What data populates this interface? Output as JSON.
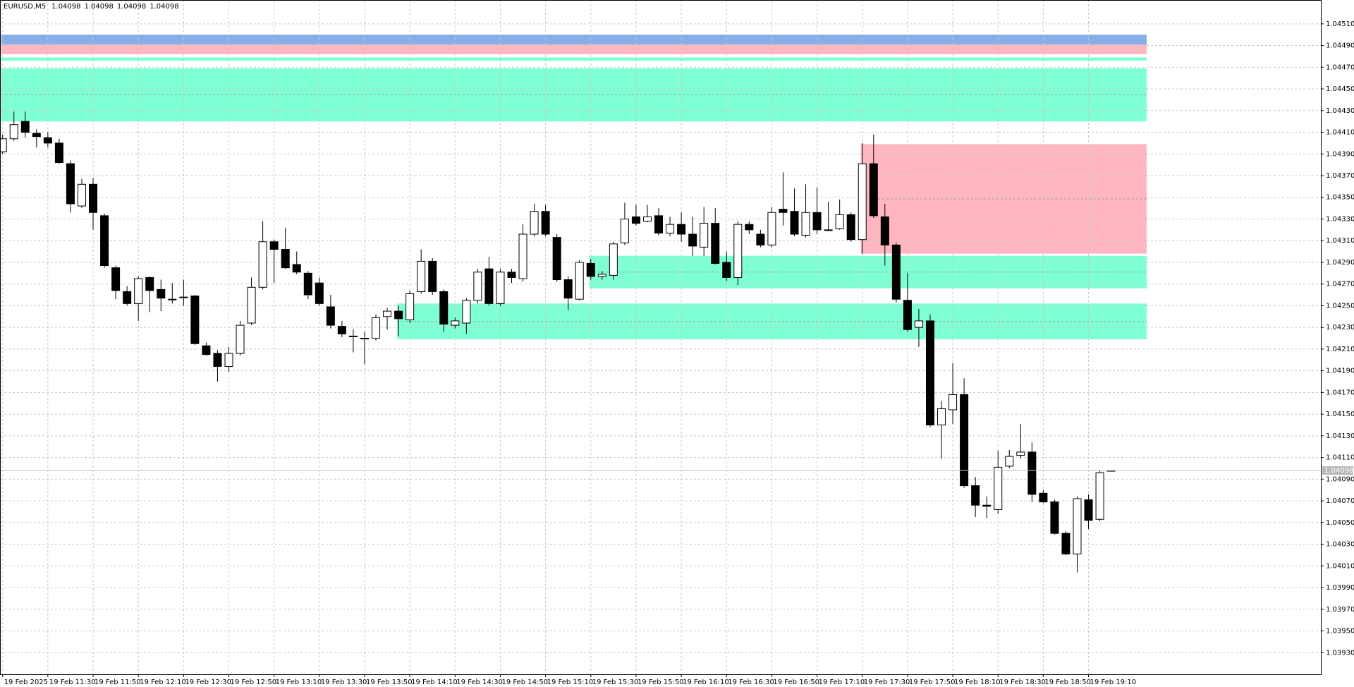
{
  "chart_data": {
    "type": "candlestick",
    "symbol": "EURUSD,M5",
    "header_ohlc": [
      1.04098,
      1.04098,
      1.04098,
      1.04098
    ],
    "last_price": 1.04098,
    "bull_color": "#ffffff",
    "bear_color": "#000000",
    "grid": true,
    "ylim": [
      1.0391,
      1.04532
    ],
    "yticks": [
      {
        "value": 1.0393,
        "label": "1.03930"
      },
      {
        "value": 1.0395,
        "label": "1.03950"
      },
      {
        "value": 1.0397,
        "label": "1.03970"
      },
      {
        "value": 1.0399,
        "label": "1.03990"
      },
      {
        "value": 1.0401,
        "label": "1.04010"
      },
      {
        "value": 1.0403,
        "label": "1.04030"
      },
      {
        "value": 1.0405,
        "label": "1.04050"
      },
      {
        "value": 1.0407,
        "label": "1.04070"
      },
      {
        "value": 1.0409,
        "label": "1.04090"
      },
      {
        "value": 1.0411,
        "label": "1.04110"
      },
      {
        "value": 1.0413,
        "label": "1.04130"
      },
      {
        "value": 1.0415,
        "label": "1.04150"
      },
      {
        "value": 1.0417,
        "label": "1.04170"
      },
      {
        "value": 1.0419,
        "label": "1.04190"
      },
      {
        "value": 1.0421,
        "label": "1.04210"
      },
      {
        "value": 1.0423,
        "label": "1.04230"
      },
      {
        "value": 1.0425,
        "label": "1.04250"
      },
      {
        "value": 1.0427,
        "label": "1.04270"
      },
      {
        "value": 1.0429,
        "label": "1.04290"
      },
      {
        "value": 1.0431,
        "label": "1.04310"
      },
      {
        "value": 1.0433,
        "label": "1.04330"
      },
      {
        "value": 1.0435,
        "label": "1.04350"
      },
      {
        "value": 1.0437,
        "label": "1.04370"
      },
      {
        "value": 1.0439,
        "label": "1.04390"
      },
      {
        "value": 1.0441,
        "label": "1.04410"
      },
      {
        "value": 1.0443,
        "label": "1.04430"
      },
      {
        "value": 1.0445,
        "label": "1.04450"
      },
      {
        "value": 1.0447,
        "label": "1.04470"
      },
      {
        "value": 1.0449,
        "label": "1.04490"
      },
      {
        "value": 1.0451,
        "label": "1.04510"
      }
    ],
    "categories": [
      "19 Feb 2025",
      null,
      null,
      null,
      "19 Feb 11:30",
      null,
      null,
      null,
      "19 Feb 11:50",
      null,
      null,
      null,
      "19 Feb 12:10",
      null,
      null,
      null,
      "19 Feb 12:30",
      null,
      null,
      null,
      "19 Feb 12:50",
      null,
      null,
      null,
      "19 Feb 13:10",
      null,
      null,
      null,
      "19 Feb 13:30",
      null,
      null,
      null,
      "19 Feb 13:50",
      null,
      null,
      null,
      "19 Feb 14:10",
      null,
      null,
      null,
      "19 Feb 14:30",
      null,
      null,
      null,
      "19 Feb 14:50",
      null,
      null,
      null,
      "19 Feb 15:10",
      null,
      null,
      null,
      "19 Feb 15:30",
      null,
      null,
      null,
      "19 Feb 15:50",
      null,
      null,
      null,
      "19 Feb 16:10",
      null,
      null,
      null,
      "19 Feb 16:30",
      null,
      null,
      null,
      "19 Feb 16:50",
      null,
      null,
      null,
      "19 Feb 17:10",
      null,
      null,
      null,
      "19 Feb 17:30",
      null,
      null,
      null,
      "19 Feb 17:50",
      null,
      null,
      null,
      "19 Feb 18:10",
      null,
      null,
      null,
      "19 Feb 18:30",
      null,
      null,
      null,
      "19 Feb 18:50",
      null,
      null,
      null,
      "19 Feb 19:10",
      null,
      null
    ],
    "open": [
      1.04392,
      1.04404,
      1.0442,
      1.04409,
      1.04405,
      1.044,
      1.04381,
      1.04342,
      1.04362,
      1.04333,
      1.04285,
      1.04263,
      1.04252,
      1.04276,
      1.04265,
      1.04256,
      1.04258,
      1.04259,
      1.04213,
      1.04206,
      1.04194,
      1.04206,
      1.04234,
      1.04267,
      1.04309,
      1.04302,
      1.04288,
      1.0428,
      1.04271,
      1.04249,
      1.04231,
      1.04222,
      1.0422,
      1.0422,
      1.0424,
      1.04245,
      1.04237,
      1.04263,
      1.04291,
      1.04263,
      1.04232,
      1.04234,
      1.04255,
      1.04284,
      1.04252,
      1.04281,
      1.04275,
      1.04316,
      1.04337,
      1.04313,
      1.04274,
      1.04256,
      1.04289,
      1.04277,
      1.04278,
      1.04308,
      1.04332,
      1.04328,
      1.04333,
      1.04317,
      1.04325,
      1.04316,
      1.04304,
      1.04326,
      1.0429,
      1.04276,
      1.04325,
      1.04316,
      1.04306,
      1.04339,
      1.04337,
      1.04315,
      1.04336,
      1.0432,
      1.04321,
      1.04334,
      1.04311,
      1.04381,
      1.04332,
      1.04306,
      1.04255,
      1.0423,
      1.04236,
      1.0414,
      1.04154,
      1.04168,
      1.04084,
      1.04066,
      1.04062,
      1.04102,
      1.04112,
      1.04115,
      1.04077,
      1.04069,
      1.0404,
      1.04021,
      1.04071,
      1.04053,
      1.04098
    ],
    "high": [
      1.04408,
      1.04429,
      1.04429,
      1.04413,
      1.0441,
      1.04404,
      1.04384,
      1.04367,
      1.04368,
      1.04335,
      1.04287,
      1.04268,
      1.04277,
      1.04277,
      1.04274,
      1.04271,
      1.04274,
      1.0426,
      1.04216,
      1.04209,
      1.04212,
      1.04236,
      1.04276,
      1.04328,
      1.04311,
      1.04322,
      1.043,
      1.04282,
      1.04276,
      1.0426,
      1.04236,
      1.04228,
      1.04226,
      1.04242,
      1.04248,
      1.0425,
      1.04264,
      1.04302,
      1.04294,
      1.04265,
      1.04239,
      1.04257,
      1.04284,
      1.04295,
      1.04284,
      1.04284,
      1.04325,
      1.04344,
      1.04343,
      1.04316,
      1.04277,
      1.04292,
      1.04293,
      1.04282,
      1.04309,
      1.04345,
      1.04343,
      1.04343,
      1.0434,
      1.04332,
      1.04336,
      1.04332,
      1.04341,
      1.0434,
      1.043,
      1.04328,
      1.04328,
      1.0432,
      1.04341,
      1.04373,
      1.04358,
      1.04362,
      1.04359,
      1.04346,
      1.04348,
      1.04336,
      1.044,
      1.04408,
      1.04344,
      1.04308,
      1.0428,
      1.04247,
      1.04242,
      1.04162,
      1.04197,
      1.04183,
      1.04092,
      1.04074,
      1.04116,
      1.04117,
      1.04141,
      1.04124,
      1.0408,
      1.04071,
      1.04042,
      1.04074,
      1.04076,
      1.04098,
      1.04098
    ],
    "low": [
      1.0439,
      1.04402,
      1.04405,
      1.04396,
      1.04396,
      1.04381,
      1.04336,
      1.0434,
      1.0432,
      1.04285,
      1.04256,
      1.0425,
      1.04236,
      1.04244,
      1.04245,
      1.04252,
      1.0425,
      1.04214,
      1.04204,
      1.0418,
      1.04189,
      1.04204,
      1.04232,
      1.04265,
      1.04271,
      1.04284,
      1.04279,
      1.04256,
      1.0425,
      1.04229,
      1.04221,
      1.04207,
      1.04196,
      1.04218,
      1.04228,
      1.04222,
      1.04234,
      1.04261,
      1.0426,
      1.04226,
      1.04229,
      1.04224,
      1.04252,
      1.0425,
      1.0425,
      1.04271,
      1.04272,
      1.04314,
      1.04314,
      1.04272,
      1.04246,
      1.04255,
      1.04274,
      1.04274,
      1.04274,
      1.04306,
      1.04324,
      1.04327,
      1.04315,
      1.04314,
      1.04309,
      1.04296,
      1.04296,
      1.04288,
      1.04273,
      1.04269,
      1.04316,
      1.04304,
      1.04304,
      1.04324,
      1.04314,
      1.04313,
      1.04316,
      1.04319,
      1.0432,
      1.04309,
      1.04298,
      1.04331,
      1.04287,
      1.04253,
      1.04226,
      1.04212,
      1.04138,
      1.04109,
      1.04141,
      1.04082,
      1.04055,
      1.04054,
      1.04058,
      1.041,
      1.04109,
      1.04069,
      1.04068,
      1.04039,
      1.0402,
      1.04004,
      1.04044,
      1.04051,
      1.04098
    ],
    "close": [
      1.04404,
      1.04417,
      1.0441,
      1.04406,
      1.044,
      1.04382,
      1.04344,
      1.04362,
      1.04336,
      1.04287,
      1.04264,
      1.04252,
      1.04275,
      1.04264,
      1.04257,
      1.04256,
      1.04258,
      1.04215,
      1.04205,
      1.04194,
      1.04206,
      1.04232,
      1.04267,
      1.04309,
      1.04302,
      1.04285,
      1.04281,
      1.0426,
      1.04252,
      1.04232,
      1.04224,
      1.04222,
      1.0422,
      1.04239,
      1.04245,
      1.04238,
      1.04261,
      1.04291,
      1.04263,
      1.04233,
      1.04236,
      1.04255,
      1.04281,
      1.04252,
      1.04281,
      1.04276,
      1.04316,
      1.04337,
      1.04316,
      1.04274,
      1.04257,
      1.0429,
      1.04277,
      1.04279,
      1.04307,
      1.0433,
      1.04326,
      1.04332,
      1.04317,
      1.04325,
      1.04316,
      1.04305,
      1.04326,
      1.04289,
      1.04276,
      1.04325,
      1.0432,
      1.04306,
      1.04336,
      1.04336,
      1.04316,
      1.04336,
      1.0432,
      1.0432,
      1.04334,
      1.04311,
      1.04381,
      1.04333,
      1.04306,
      1.04256,
      1.04228,
      1.04236,
      1.0414,
      1.04155,
      1.04168,
      1.04084,
      1.04066,
      1.04065,
      1.04101,
      1.04111,
      1.04115,
      1.04076,
      1.04069,
      1.0404,
      1.04021,
      1.04072,
      1.04052,
      1.04096,
      1.04098
    ],
    "zones": [
      {
        "start": 0,
        "top": 1.045,
        "bottom": 1.04491,
        "color": "#87aee8"
      },
      {
        "start": 0,
        "top": 1.04491,
        "bottom": 1.04482,
        "color": "#ffb6c1"
      },
      {
        "start": 0,
        "top": 1.04479,
        "bottom": 1.04476,
        "color": "#7fffd4"
      },
      {
        "start": 0,
        "top": 1.04469,
        "bottom": 1.0442,
        "color": "#7fffd4"
      },
      {
        "start": 76,
        "top": 1.04399,
        "bottom": 1.04298,
        "color": "#ffb6c1"
      },
      {
        "start": 52,
        "top": 1.04296,
        "bottom": 1.04266,
        "color": "#7fffd4"
      },
      {
        "start": 35,
        "top": 1.04252,
        "bottom": 1.04219,
        "color": "#7fffd4"
      }
    ]
  }
}
